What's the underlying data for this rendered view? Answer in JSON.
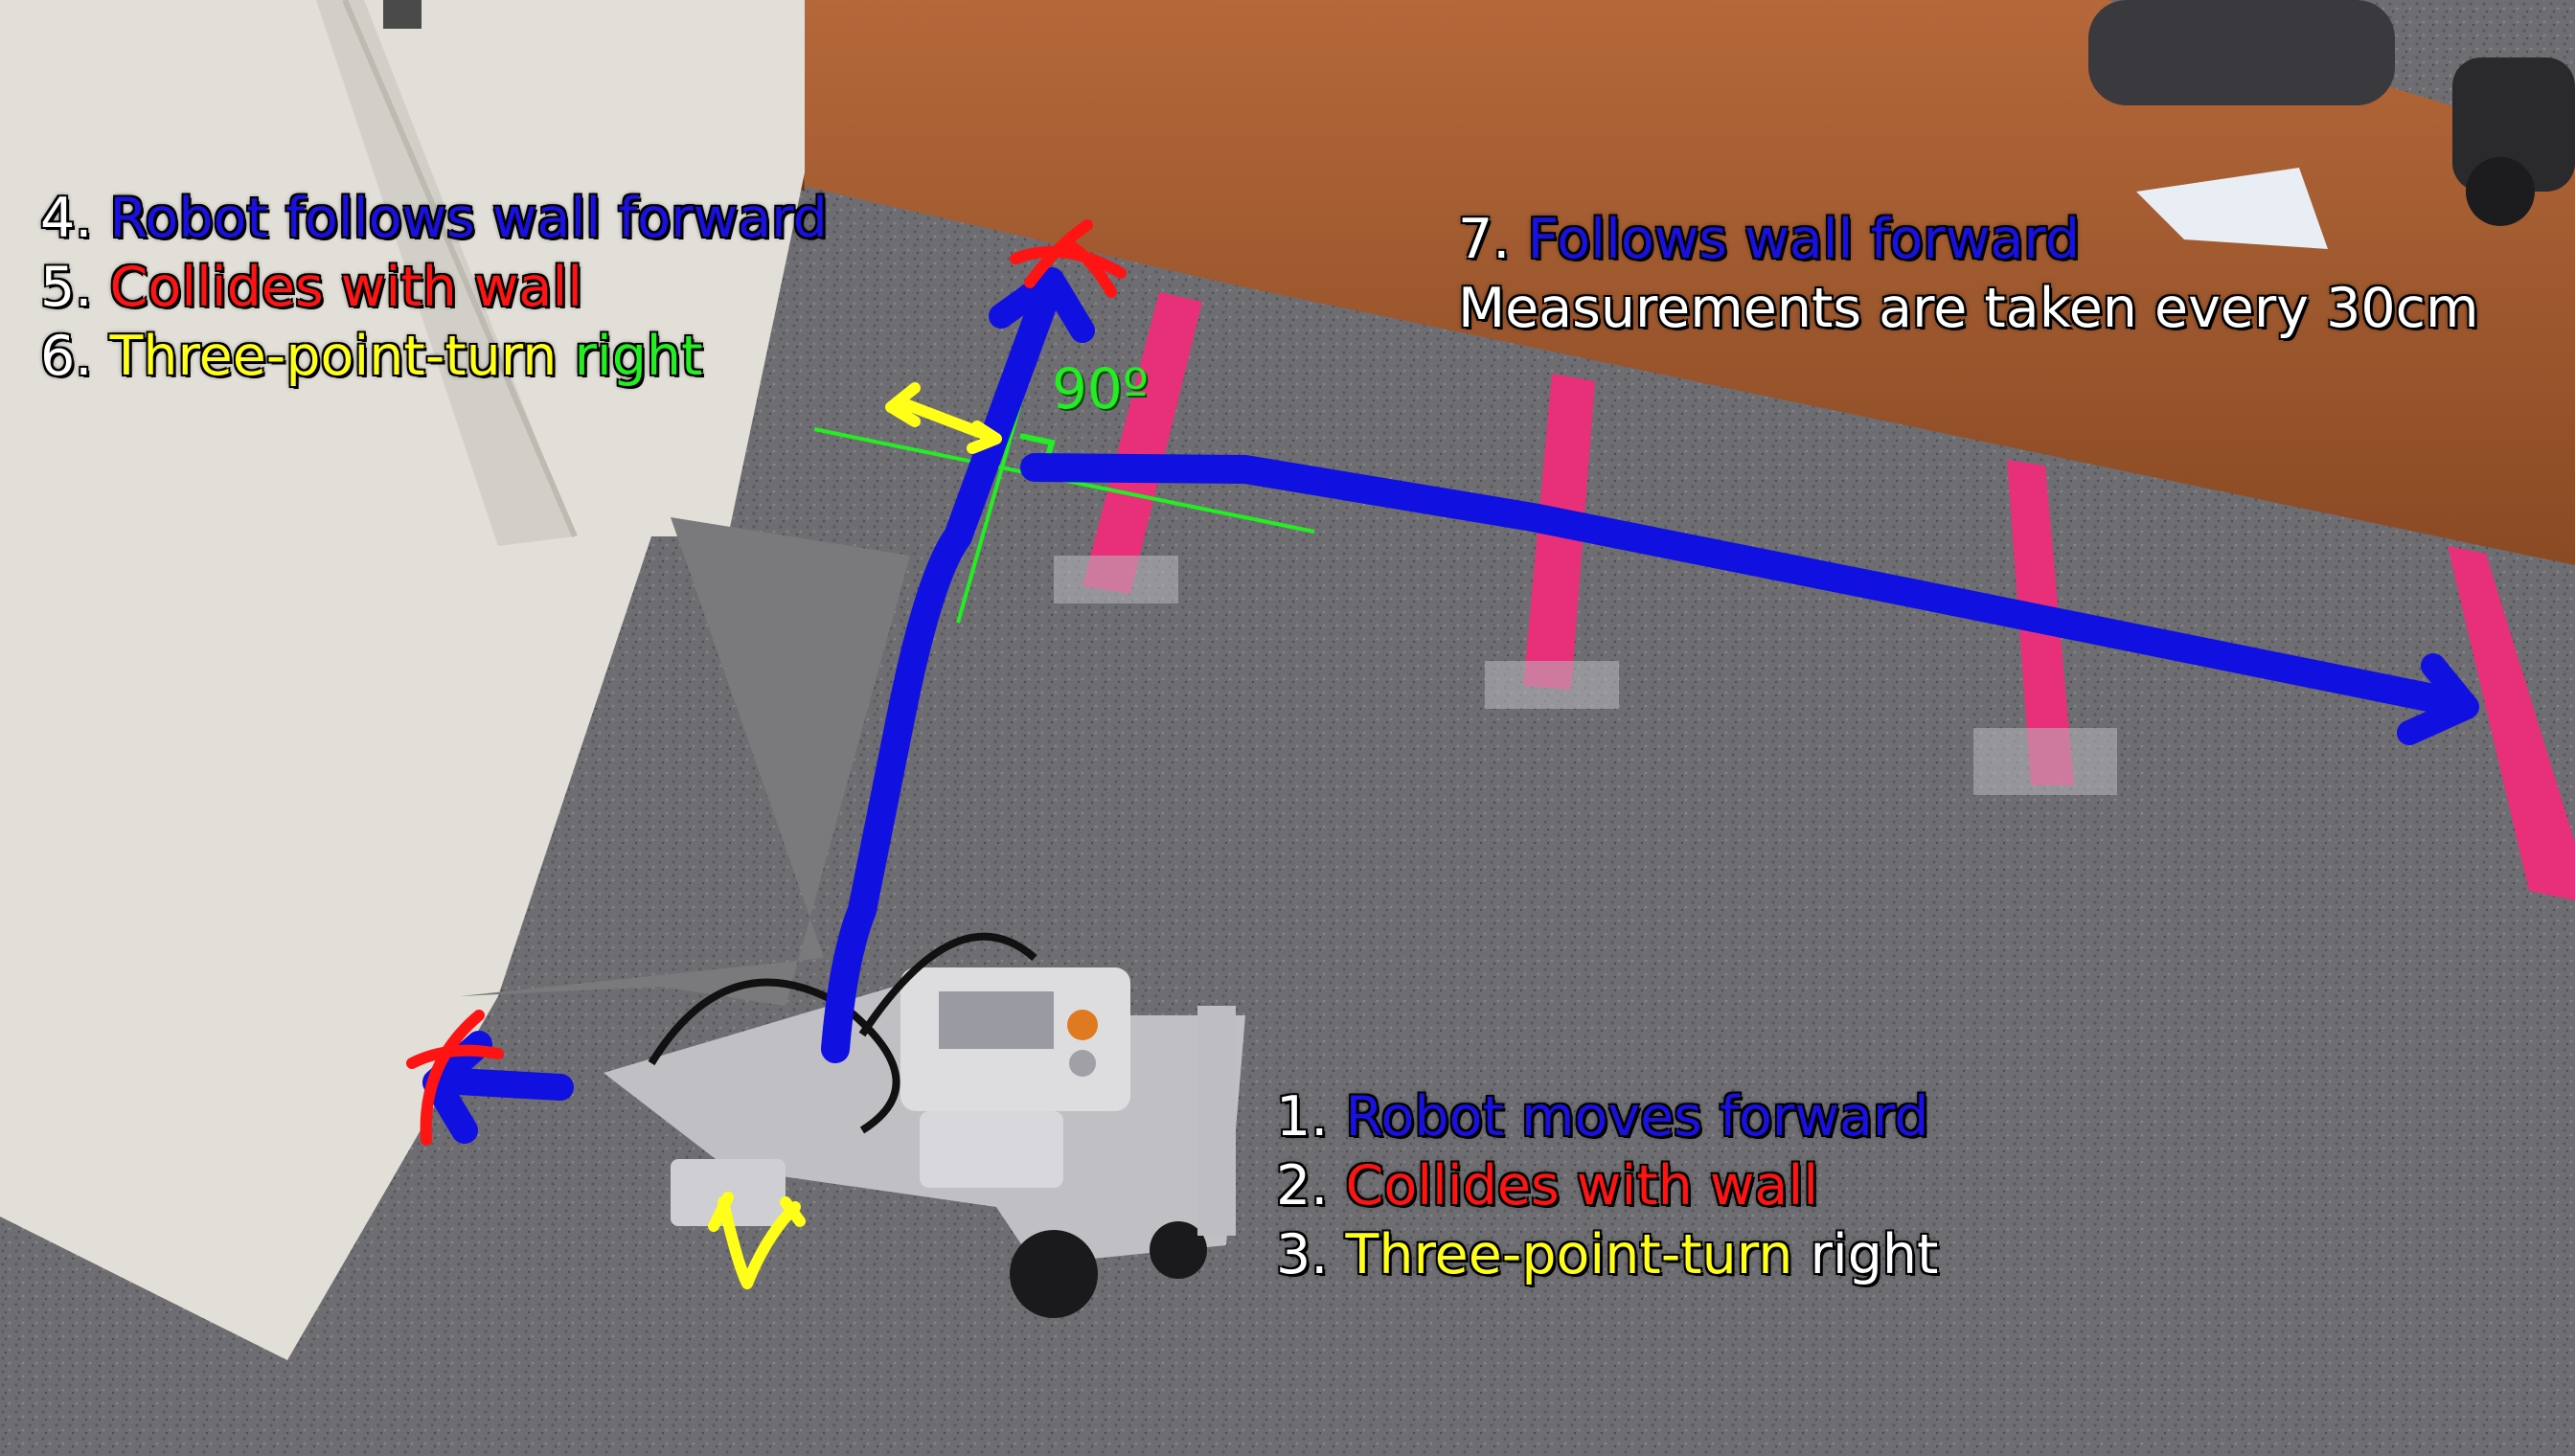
{
  "colors": {
    "path_blue": "#1010e0",
    "collision_red": "#ff1414",
    "turn_yellow": "#ffff1a",
    "guide_green": "#22ee22",
    "tape_pink": "#e8307a",
    "carpet": "#6e6e72",
    "wall_wood": "#a0582c",
    "cabinet": "#e4e1da"
  },
  "icons": {
    "start_arrow": "arrow-left-icon",
    "path_arrow": "arrow-up-icon",
    "end_arrow": "arrow-right-icon",
    "collision_mark": "collision-icon",
    "turn_mark": "three-point-turn-icon",
    "right_angle": "right-angle-icon"
  },
  "angle_label": "90º",
  "top_left_caption": {
    "step4": {
      "num": "4. ",
      "text": "Robot follows wall forward"
    },
    "step5": {
      "num": "5. ",
      "text": "Collides with wall"
    },
    "step6": {
      "num": "6. ",
      "text_yellow": "Three-point-turn",
      "text_green": " right"
    }
  },
  "top_right_caption": {
    "step7": {
      "num": "7. ",
      "text": "Follows wall forward"
    },
    "note": "Measurements are taken every 30cm"
  },
  "bottom_caption": {
    "step1": {
      "num": "1. ",
      "text": "Robot moves forward"
    },
    "step2": {
      "num": "2. ",
      "text": "Collides with wall"
    },
    "step3": {
      "num": "3. ",
      "text_yellow": "Three-point-turn",
      "text_white": " right"
    }
  }
}
